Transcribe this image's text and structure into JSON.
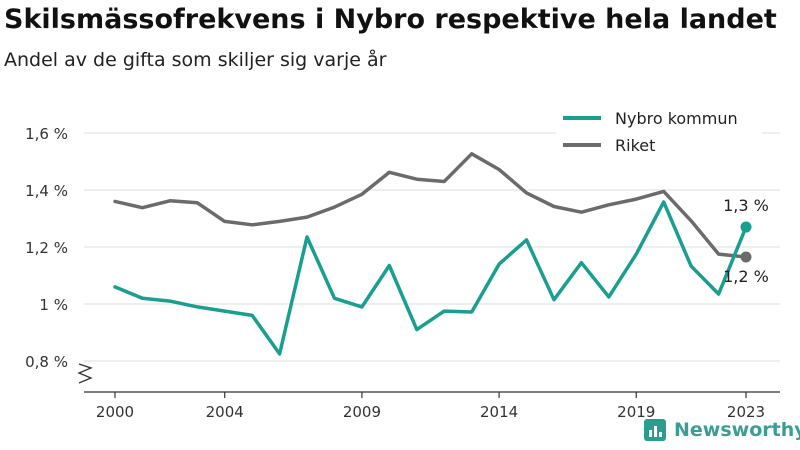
{
  "title": "Skilsmässofrekvens i Nybro respektive hela landet",
  "subtitle": "Andel av de gifta som skiljer sig varje år",
  "logo_text": "Newsworthy",
  "chart_data": {
    "type": "line",
    "x": [
      2000,
      2001,
      2002,
      2003,
      2004,
      2005,
      2006,
      2007,
      2008,
      2009,
      2010,
      2011,
      2012,
      2013,
      2014,
      2015,
      2016,
      2017,
      2018,
      2019,
      2020,
      2021,
      2022,
      2023
    ],
    "series": [
      {
        "name": "Nybro kommun",
        "color": "#1a9e8f",
        "values": [
          1.06,
          1.02,
          1.01,
          0.99,
          0.975,
          0.96,
          0.825,
          1.235,
          1.02,
          0.99,
          1.135,
          0.91,
          0.975,
          0.972,
          1.14,
          1.225,
          1.015,
          1.145,
          1.025,
          1.175,
          1.358,
          1.133,
          1.035,
          1.27
        ],
        "end_label": "1,3 %"
      },
      {
        "name": "Riket",
        "color": "#6b6b6e",
        "values": [
          1.36,
          1.338,
          1.362,
          1.355,
          1.29,
          1.278,
          1.29,
          1.305,
          1.34,
          1.385,
          1.462,
          1.438,
          1.43,
          1.527,
          1.472,
          1.39,
          1.342,
          1.322,
          1.348,
          1.368,
          1.395,
          1.292,
          1.175,
          1.165
        ],
        "end_label": "1,2 %"
      }
    ],
    "xticks": [
      2000,
      2004,
      2009,
      2014,
      2019,
      2023
    ],
    "yticks": [
      0.8,
      1.0,
      1.2,
      1.4,
      1.6
    ],
    "ytick_labels": [
      "0,8 %",
      "1 %",
      "1,2 %",
      "1,4 %",
      "1,6 %"
    ],
    "ylim": [
      0.8,
      1.6
    ],
    "grid": "horizontal",
    "legend_position": "top-right",
    "axis_break": true
  }
}
